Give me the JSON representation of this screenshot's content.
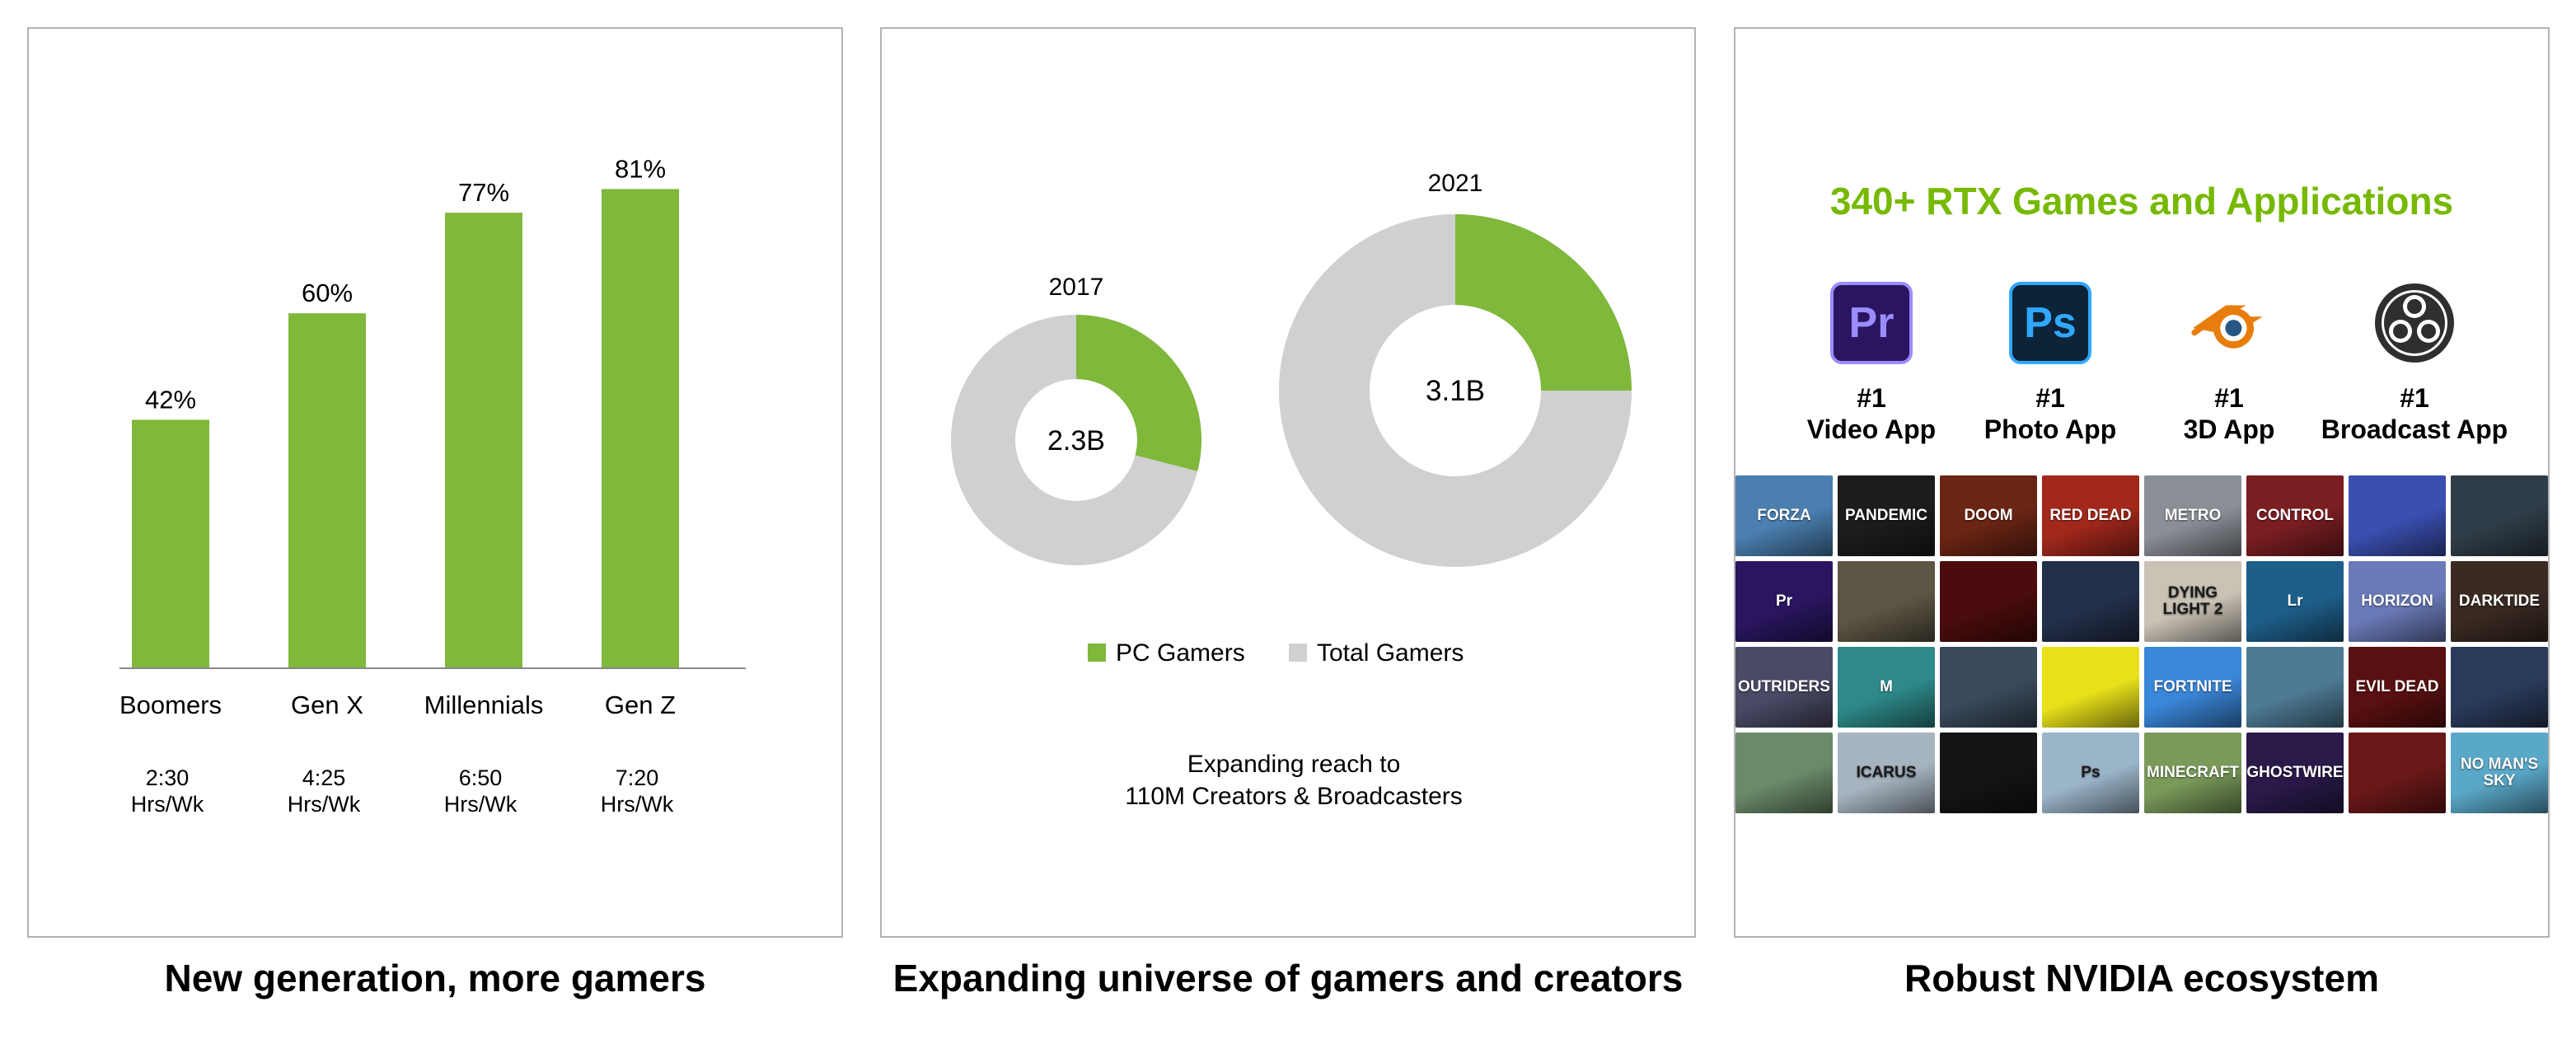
{
  "captions": {
    "panel1": "New generation, more gamers",
    "panel2": "Expanding universe of gamers and creators",
    "panel3": "Robust NVIDIA ecosystem"
  },
  "chart_data": [
    {
      "type": "bar",
      "categories": [
        "Boomers",
        "Gen X",
        "Millennials",
        "Gen Z"
      ],
      "values": [
        42,
        60,
        77,
        81
      ],
      "value_labels": [
        "42%",
        "60%",
        "77%",
        "81%"
      ],
      "sub_labels": [
        [
          "2:30",
          "Hrs/Wk"
        ],
        [
          "4:25",
          "Hrs/Wk"
        ],
        [
          "6:50",
          "Hrs/Wk"
        ],
        [
          "7:20",
          "Hrs/Wk"
        ]
      ],
      "ylim": [
        0,
        100
      ],
      "color": "#7fb83a",
      "grid": false
    },
    {
      "type": "pie",
      "donuts": [
        {
          "year": "2017",
          "total_label": "2.3B",
          "pc_share": 0.29
        },
        {
          "year": "2021",
          "total_label": "3.1B",
          "pc_share": 0.25
        }
      ],
      "legend": [
        {
          "label": "PC Gamers",
          "color": "#7fb83a"
        },
        {
          "label": "Total Gamers",
          "color": "#d0d0d0"
        }
      ],
      "legend_position": "bottom",
      "note": [
        "Expanding reach to",
        "110M Creators & Broadcasters"
      ]
    }
  ],
  "ecosystem": {
    "title": "340+ RTX Games and Applications",
    "title_color": "#76b900",
    "apps": [
      {
        "icon": "premiere-pro-icon",
        "glyph": "Pr",
        "rank": "#1",
        "label": "Video App"
      },
      {
        "icon": "photoshop-icon",
        "glyph": "Ps",
        "rank": "#1",
        "label": "Photo App"
      },
      {
        "icon": "blender-icon",
        "glyph": "",
        "rank": "#1",
        "label": "3D App"
      },
      {
        "icon": "obs-icon",
        "glyph": "",
        "rank": "#1",
        "label": "Broadcast App"
      }
    ],
    "tiles": [
      {
        "name": "forza-horizon-tile",
        "text": "FORZA",
        "bg": "#4a7fb0"
      },
      {
        "name": "pandemic-tile",
        "text": "PANDEMIC",
        "bg": "#1c1c1c"
      },
      {
        "name": "doom-tile",
        "text": "DOOM",
        "bg": "#6b2514"
      },
      {
        "name": "red-dead-tile",
        "text": "RED DEAD",
        "bg": "#a3281c"
      },
      {
        "name": "metro-tile",
        "text": "METRO",
        "bg": "#8a8f96"
      },
      {
        "name": "control-tile",
        "text": "CONTROL",
        "bg": "#7a1e22"
      },
      {
        "name": "unity-tile",
        "text": "",
        "bg": "#3a4fb0"
      },
      {
        "name": "sinking-city-tile",
        "text": "",
        "bg": "#2f3d48"
      },
      {
        "name": "premiere-tile",
        "text": "Pr",
        "bg": "#2a1660"
      },
      {
        "name": "elder-scrolls-tile",
        "text": "",
        "bg": "#5c5544"
      },
      {
        "name": "shadow-warrior-tile",
        "text": "",
        "bg": "#4a0c0c"
      },
      {
        "name": "obs-tile",
        "text": "",
        "bg": "#23304a"
      },
      {
        "name": "dying-light-tile",
        "text": "DYING LIGHT 2",
        "bg": "#c9c2b5"
      },
      {
        "name": "lightroom-tile",
        "text": "Lr",
        "bg": "#1e5f8a"
      },
      {
        "name": "horizon-tile",
        "text": "HORIZON",
        "bg": "#6a7ab8"
      },
      {
        "name": "darktide-tile",
        "text": "DARKTIDE",
        "bg": "#3a2a22"
      },
      {
        "name": "outriders-tile",
        "text": "OUTRIDERS",
        "bg": "#4a4a66"
      },
      {
        "name": "maya-tile",
        "text": "M",
        "bg": "#2e8a8a"
      },
      {
        "name": "naraka-tile",
        "text": "",
        "bg": "#3a4a5c"
      },
      {
        "name": "cyberpunk-tile",
        "text": "",
        "bg": "#e8e11a"
      },
      {
        "name": "fortnite-tile",
        "text": "FORTNITE",
        "bg": "#3a86d8"
      },
      {
        "name": "god-of-war-tile",
        "text": "",
        "bg": "#4e7a94"
      },
      {
        "name": "evil-dead-tile",
        "text": "EVIL DEAD",
        "bg": "#5a1010"
      },
      {
        "name": "blender-tile",
        "text": "",
        "bg": "#2a3a5a"
      },
      {
        "name": "dinosaur-tile",
        "text": "",
        "bg": "#6a8a6a"
      },
      {
        "name": "icarus-tile",
        "text": "ICARUS",
        "bg": "#a6b4c0"
      },
      {
        "name": "hitman-tile",
        "text": "",
        "bg": "#141414"
      },
      {
        "name": "photoshop-tile",
        "text": "Ps",
        "bg": "#9ab4c8"
      },
      {
        "name": "minecraft-tile",
        "text": "MINECRAFT",
        "bg": "#7a9a5a"
      },
      {
        "name": "ghostwire-tile",
        "text": "GHOSTWIRE",
        "bg": "#2a1a4a"
      },
      {
        "name": "back4blood-tile",
        "text": "",
        "bg": "#6a1818"
      },
      {
        "name": "no-mans-sky-tile",
        "text": "NO MAN'S SKY",
        "bg": "#5aa8c8"
      }
    ]
  }
}
